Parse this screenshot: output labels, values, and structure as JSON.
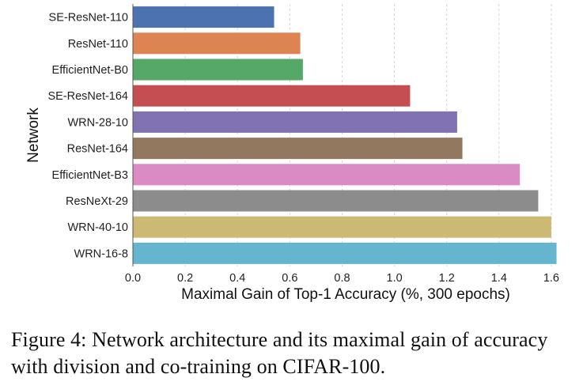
{
  "chart_data": {
    "type": "bar",
    "orientation": "horizontal",
    "categories": [
      "SE-ResNet-110",
      "ResNet-110",
      "EfficientNet-B0",
      "SE-ResNet-164",
      "WRN-28-10",
      "ResNet-164",
      "EfficientNet-B3",
      "ResNeXt-29",
      "WRN-40-10",
      "WRN-16-8"
    ],
    "values": [
      0.54,
      0.64,
      0.65,
      1.06,
      1.24,
      1.26,
      1.48,
      1.55,
      1.6,
      1.62
    ],
    "colors": [
      "#4c72b0",
      "#dd8452",
      "#55a868",
      "#c44e52",
      "#8172b3",
      "#937860",
      "#da8bc3",
      "#8c8c8c",
      "#ccb974",
      "#64b5cd"
    ],
    "xlabel": "Maximal Gain of Top-1 Accuracy (%, 300 epochs)",
    "ylabel": "Network",
    "xlim": [
      0,
      1.7
    ],
    "xticks": [
      "0.0",
      "0.2",
      "0.4",
      "0.6",
      "0.8",
      "1.0",
      "1.2",
      "1.4",
      "1.6"
    ],
    "grid": "vertical dashed"
  },
  "caption": "Figure 4: Network architecture and its maximal gain of accuracy with division and co-training on CIFAR-100."
}
